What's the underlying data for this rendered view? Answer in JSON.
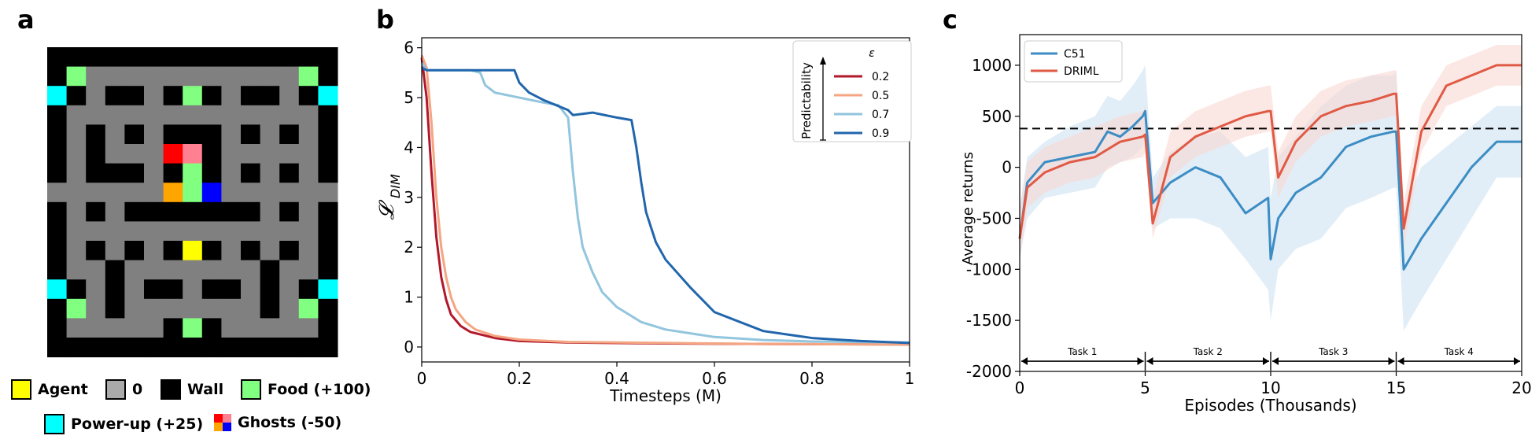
{
  "panels": {
    "a": "a",
    "b": "b",
    "c": "c"
  },
  "maze": {
    "rows": [
      "###############",
      "#F...........F#",
      "P#.##.#F#.##.#P",
      "#.............#",
      "#.#.#.###.#.#.#",
      "#.#...RP#.....#",
      "#.###.#G#.#.#.#",
      "......OGB......",
      "#.#.#######.#.#",
      "#.............#",
      "#.#.#.#A#.#.#.#",
      "#..#.......#..#",
      "P#.#.##.##.#.#P",
      "#F.#.......#.F#",
      "#.....#F#.....#",
      "###############"
    ],
    "legend": [
      {
        "label": "Agent",
        "color": "#ffff00"
      },
      {
        "label": "0",
        "color": "#aaaaaa"
      },
      {
        "label": "Wall",
        "color": "#000000"
      },
      {
        "label": "Food (+100)",
        "color": "#80ff80"
      },
      {
        "label": "Power-up (+25)",
        "color": "#00ffff"
      },
      {
        "label": "Ghosts (-50)",
        "color": "multi"
      }
    ],
    "colors": {
      "wall": "#000000",
      "path": "#808080",
      "food": "#80ff80",
      "power": "#00ffff",
      "agent": "#ffff00",
      "ghost_red": "#ff0000",
      "ghost_pink": "#ff8090",
      "ghost_orange": "#ffa500",
      "ghost_blue": "#0000ff",
      "ghost_green": "#80ff80"
    }
  },
  "chart_data": [
    {
      "type": "line",
      "xlabel": "Timesteps (M)",
      "ylabel": "𝓛",
      "ylabel_sub": "DIM",
      "xlim": [
        0,
        1
      ],
      "ylim": [
        -0.3,
        6.2
      ],
      "xticks": [
        0,
        0.2,
        0.4,
        0.6,
        0.8,
        1
      ],
      "xtick_labels": [
        "0",
        "0.2",
        "0.4",
        "0.6",
        "0.8",
        "1"
      ],
      "yticks": [
        0,
        1,
        2,
        3,
        4,
        5,
        6
      ],
      "ytick_labels": [
        "0",
        "1",
        "2",
        "3",
        "4",
        "5",
        "6"
      ],
      "legend_title": "ε",
      "legend_side_label": "Predictability",
      "legend_position": "top-right",
      "series": [
        {
          "name": "0.2",
          "color": "#b2182b",
          "x": [
            0,
            0.01,
            0.02,
            0.03,
            0.04,
            0.05,
            0.06,
            0.08,
            0.1,
            0.15,
            0.2,
            0.3,
            0.5,
            0.7,
            1.0
          ],
          "y": [
            5.8,
            5.0,
            3.5,
            2.2,
            1.4,
            0.95,
            0.65,
            0.42,
            0.3,
            0.18,
            0.12,
            0.09,
            0.07,
            0.06,
            0.05
          ]
        },
        {
          "name": "0.5",
          "color": "#f4a582",
          "x": [
            0,
            0.01,
            0.02,
            0.03,
            0.04,
            0.05,
            0.06,
            0.07,
            0.09,
            0.11,
            0.15,
            0.2,
            0.3,
            0.5,
            0.7,
            1.0
          ],
          "y": [
            5.85,
            5.6,
            4.5,
            3.0,
            2.0,
            1.4,
            1.0,
            0.75,
            0.5,
            0.35,
            0.22,
            0.15,
            0.1,
            0.08,
            0.06,
            0.05
          ]
        },
        {
          "name": "0.7",
          "color": "#92c5de",
          "x": [
            0,
            0.01,
            0.05,
            0.1,
            0.12,
            0.13,
            0.15,
            0.2,
            0.25,
            0.28,
            0.3,
            0.31,
            0.32,
            0.33,
            0.35,
            0.37,
            0.4,
            0.45,
            0.5,
            0.6,
            0.7,
            0.8,
            1.0
          ],
          "y": [
            5.7,
            5.55,
            5.55,
            5.55,
            5.5,
            5.25,
            5.1,
            5.0,
            4.9,
            4.85,
            4.6,
            3.5,
            2.6,
            2.0,
            1.5,
            1.1,
            0.8,
            0.5,
            0.35,
            0.2,
            0.14,
            0.11,
            0.09
          ]
        },
        {
          "name": "0.9",
          "color": "#2166ac",
          "x": [
            0,
            0.01,
            0.05,
            0.1,
            0.15,
            0.19,
            0.2,
            0.22,
            0.25,
            0.3,
            0.31,
            0.35,
            0.4,
            0.43,
            0.44,
            0.45,
            0.46,
            0.47,
            0.48,
            0.5,
            0.55,
            0.6,
            0.7,
            0.8,
            0.9,
            1.0
          ],
          "y": [
            5.6,
            5.55,
            5.55,
            5.55,
            5.55,
            5.55,
            5.3,
            5.1,
            4.95,
            4.75,
            4.65,
            4.7,
            4.6,
            4.55,
            4.0,
            3.3,
            2.7,
            2.4,
            2.1,
            1.75,
            1.2,
            0.7,
            0.32,
            0.18,
            0.12,
            0.08
          ]
        }
      ]
    },
    {
      "type": "line",
      "xlabel": "Episodes (Thousands)",
      "ylabel": "Average returns",
      "xlim": [
        0,
        20
      ],
      "ylim": [
        -2000,
        1300
      ],
      "xticks": [
        0,
        5,
        10,
        15,
        20
      ],
      "xtick_labels": [
        "0",
        "5",
        "10",
        "15",
        "20"
      ],
      "yticks": [
        1000,
        500,
        0,
        -500,
        -1000,
        -1500,
        -2000
      ],
      "ytick_labels": [
        "1000",
        "500",
        "0",
        "-500",
        "-1000",
        "-1500",
        "-2000"
      ],
      "reference_line": 380,
      "legend_position": "top-left",
      "tasks": [
        {
          "label": "Task 1",
          "from": 0,
          "to": 5
        },
        {
          "label": "Task 2",
          "from": 5,
          "to": 10
        },
        {
          "label": "Task 3",
          "from": 10,
          "to": 15
        },
        {
          "label": "Task 4",
          "from": 15,
          "to": 20
        }
      ],
      "series": [
        {
          "name": "C51",
          "color": "#3c8dc4",
          "band": "#cfe3f2",
          "x": [
            0,
            0.3,
            1,
            2,
            3,
            3.5,
            4,
            4.5,
            4.9,
            5.0,
            5.3,
            6,
            7,
            8,
            9,
            9.9,
            10.0,
            10.3,
            11,
            12,
            13,
            14,
            14.9,
            15.0,
            15.3,
            16,
            17,
            18,
            19,
            20
          ],
          "y": [
            -700,
            -150,
            50,
            100,
            150,
            350,
            300,
            400,
            500,
            550,
            -350,
            -150,
            0,
            -100,
            -450,
            -300,
            -900,
            -500,
            -250,
            -100,
            200,
            300,
            350,
            350,
            -1000,
            -700,
            -350,
            0,
            250,
            250
          ],
          "band_lo": [
            -900,
            -500,
            -300,
            -250,
            -200,
            0,
            50,
            100,
            200,
            300,
            -600,
            -500,
            -500,
            -600,
            -900,
            -1200,
            -1500,
            -1000,
            -800,
            -700,
            -400,
            -300,
            -200,
            -200,
            -1600,
            -1300,
            -900,
            -500,
            -100,
            -100
          ],
          "band_hi": [
            -400,
            100,
            250,
            400,
            500,
            700,
            650,
            800,
            950,
            1000,
            -100,
            150,
            300,
            350,
            100,
            200,
            -300,
            100,
            300,
            600,
            800,
            900,
            900,
            950,
            -400,
            0,
            200,
            400,
            600,
            600
          ]
        },
        {
          "name": "DRIML",
          "color": "#e05a45",
          "band": "#f8d8d2",
          "x": [
            0,
            0.3,
            1,
            2,
            3,
            4,
            4.9,
            5.0,
            5.3,
            6,
            7,
            8,
            9,
            9.9,
            10.0,
            10.3,
            11,
            12,
            13,
            14,
            14.9,
            15.0,
            15.3,
            16,
            17,
            18,
            19,
            20
          ],
          "y": [
            -700,
            -200,
            -50,
            50,
            100,
            250,
            300,
            320,
            -550,
            100,
            300,
            400,
            500,
            550,
            550,
            -100,
            250,
            500,
            600,
            650,
            720,
            720,
            -600,
            350,
            800,
            900,
            1000,
            1000
          ],
          "band_lo": [
            -900,
            -400,
            -250,
            -150,
            -100,
            50,
            100,
            150,
            -700,
            -100,
            100,
            200,
            300,
            350,
            350,
            -300,
            50,
            300,
            400,
            450,
            500,
            500,
            -800,
            150,
            600,
            700,
            800,
            800
          ],
          "band_hi": [
            -400,
            50,
            200,
            300,
            400,
            500,
            550,
            600,
            -300,
            350,
            550,
            650,
            750,
            800,
            800,
            150,
            500,
            750,
            850,
            900,
            950,
            950,
            -350,
            600,
            1000,
            1100,
            1200,
            1200
          ]
        }
      ]
    }
  ]
}
